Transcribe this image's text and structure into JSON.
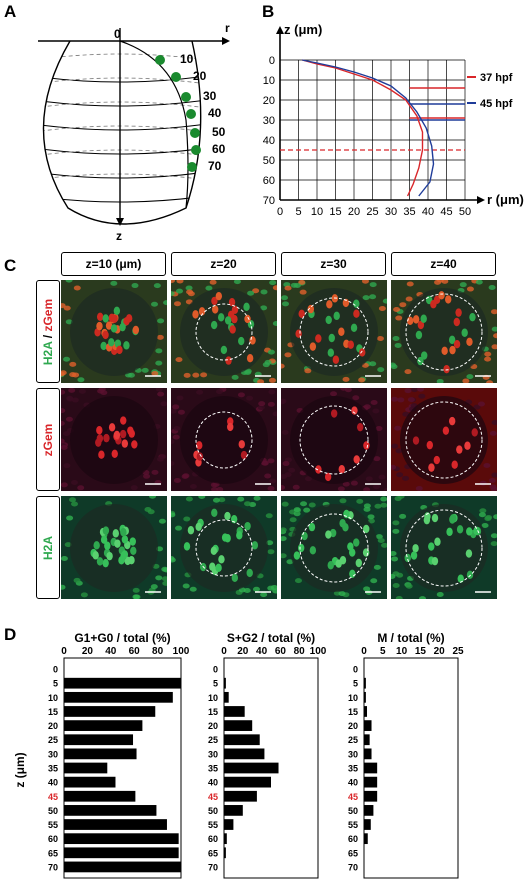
{
  "panel_labels": {
    "a": "A",
    "b": "B",
    "c": "C",
    "d": "D"
  },
  "panelA": {
    "origin_label": "0",
    "r_axis_label": "r",
    "z_axis_label": "z",
    "depth_labels": [
      "10",
      "20",
      "30",
      "40",
      "50",
      "60",
      "70"
    ],
    "marker_color": "#1a8a2e"
  },
  "chart_data": [
    {
      "type": "line",
      "title": "",
      "xlabel": "r (μm)",
      "ylabel": "z (μm)",
      "xlim": [
        0,
        50
      ],
      "ylim": [
        0,
        70
      ],
      "y_inverted": true,
      "xticks": [
        0,
        5,
        10,
        15,
        20,
        25,
        30,
        35,
        40,
        45,
        50
      ],
      "yticks": [
        0,
        10,
        20,
        30,
        40,
        50,
        60,
        70
      ],
      "grid": true,
      "series": [
        {
          "name": "37 hpf",
          "color": "#d9262a",
          "x": [
            6,
            10,
            15,
            20,
            25,
            30,
            34,
            37,
            38.5,
            38.5,
            37.5,
            36,
            34.5
          ],
          "y": [
            0,
            2,
            4,
            7,
            10,
            15,
            20,
            28,
            36,
            45,
            54,
            62,
            68
          ]
        },
        {
          "name": "45 hpf",
          "color": "#1f3c99",
          "x": [
            6,
            10,
            15,
            20,
            25,
            30,
            34,
            37,
            39.5,
            41,
            41.5,
            40.5,
            37.5
          ],
          "y": [
            0,
            1.5,
            3.5,
            6,
            9,
            13,
            19,
            26,
            34,
            43,
            52,
            61,
            68
          ]
        }
      ],
      "reference_lines": [
        {
          "z": 14,
          "color": "#d9262a",
          "style": "solid"
        },
        {
          "z": 22,
          "color": "#1f3c99",
          "style": "solid"
        },
        {
          "z": 29,
          "color": "#d9262a",
          "style": "solid"
        },
        {
          "z": 30,
          "color": "#1f3c99",
          "style": "solid"
        },
        {
          "z": 45,
          "color": "#d9262a",
          "style": "dashed"
        }
      ],
      "legend": [
        "37 hpf",
        "45 hpf"
      ],
      "legend_position": "right"
    },
    {
      "type": "bar",
      "orientation": "horizontal",
      "title": "G1+G0 / total (%)",
      "ylabel": "z (μm)",
      "categories": [
        "0",
        "5",
        "10",
        "15",
        "20",
        "25",
        "30",
        "35",
        "40",
        "45",
        "50",
        "55",
        "60",
        "65",
        "70"
      ],
      "highlight_category": "45",
      "values": [
        0,
        100,
        93,
        78,
        67,
        59,
        62,
        37,
        44,
        61,
        79,
        88,
        98,
        98,
        100
      ],
      "xlim": [
        0,
        100
      ],
      "xticks": [
        0,
        20,
        40,
        60,
        80,
        100
      ]
    },
    {
      "type": "bar",
      "orientation": "horizontal",
      "title": "S+G2 / total (%)",
      "categories": [
        "0",
        "5",
        "10",
        "15",
        "20",
        "25",
        "30",
        "35",
        "40",
        "45",
        "50",
        "55",
        "60",
        "65",
        "70"
      ],
      "highlight_category": "45",
      "values": [
        0,
        2,
        5,
        22,
        30,
        38,
        43,
        58,
        50,
        35,
        20,
        10,
        3,
        2,
        0
      ],
      "xlim": [
        0,
        100
      ],
      "xticks": [
        0,
        20,
        40,
        60,
        80,
        100
      ]
    },
    {
      "type": "bar",
      "orientation": "horizontal",
      "title": "M / total (%)",
      "categories": [
        "0",
        "5",
        "10",
        "15",
        "20",
        "25",
        "30",
        "35",
        "40",
        "45",
        "50",
        "55",
        "60",
        "65",
        "70"
      ],
      "highlight_category": "45",
      "values": [
        0,
        0.5,
        0.5,
        0.8,
        2,
        1.5,
        2,
        3.5,
        3.5,
        3.5,
        2.5,
        1.8,
        1,
        0,
        0
      ],
      "xlim": [
        0,
        25
      ],
      "xticks": [
        0,
        5,
        10,
        15,
        20,
        25
      ]
    }
  ],
  "panelC": {
    "columns": [
      "z=10 (μm)",
      "z=20",
      "z=30",
      "z=40"
    ],
    "rows": [
      {
        "key": "merge",
        "label_a": "H2A",
        "label_sep": " / ",
        "label_b": "zGem",
        "color_a": "#2fa84f",
        "color_b": "#d9262a"
      },
      {
        "key": "zgem",
        "label_a": "zGem",
        "color_a": "#d9262a"
      },
      {
        "key": "h2a",
        "label_a": "H2A",
        "color_a": "#2fa84f"
      }
    ],
    "highlight_color": "#d9262a"
  }
}
